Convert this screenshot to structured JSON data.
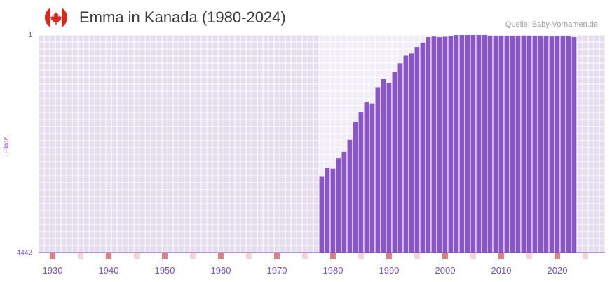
{
  "header": {
    "title": "Emma in Kanada (1980-2024)",
    "source": "Quelle: Baby-Vornamen.de",
    "flag_icon": "canada-flag-icon"
  },
  "colors": {
    "bar": "#8a56c6",
    "plot_bg": "#e4deee",
    "highlight_bg": "#f1eef7",
    "grid": "#ffffff",
    "axis": "#7a4fc0",
    "decade_marker": "#e07c86",
    "half_decade_marker": "#f6d2d9",
    "flag_red": "#d52b1e"
  },
  "chart_data": {
    "type": "bar",
    "title": "Emma in Kanada (1980-2024)",
    "xlabel": "",
    "ylabel": "Platz",
    "x_range": [
      1928,
      2029
    ],
    "y_range_rank": [
      4442,
      1
    ],
    "y_tick_labels": [
      "1",
      "4442"
    ],
    "x_tick_labels": [
      "1930",
      "1940",
      "1950",
      "1960",
      "1970",
      "1980",
      "1990",
      "2000",
      "2010",
      "2020"
    ],
    "x_tick_years": [
      1930,
      1940,
      1950,
      1960,
      1970,
      1980,
      1990,
      2000,
      2010,
      2020
    ],
    "highlight_range": [
      1978,
      2006
    ],
    "bar_value_unit": "share of full scale (1 = rank 1, 0 = rank 4442)",
    "years": [
      1978,
      1979,
      1980,
      1981,
      1982,
      1983,
      1984,
      1985,
      1986,
      1987,
      1988,
      1989,
      1990,
      1991,
      1992,
      1993,
      1994,
      1995,
      1996,
      1997,
      1998,
      1999,
      2000,
      2001,
      2002,
      2003,
      2004,
      2005,
      2006,
      2007,
      2008,
      2009,
      2010,
      2011,
      2012,
      2013,
      2014,
      2015,
      2016,
      2017,
      2018,
      2019,
      2020,
      2021,
      2022,
      2023
    ],
    "values": [
      0.35,
      0.39,
      0.385,
      0.435,
      0.465,
      0.52,
      0.6,
      0.645,
      0.69,
      0.685,
      0.76,
      0.8,
      0.78,
      0.83,
      0.87,
      0.905,
      0.915,
      0.945,
      0.965,
      0.99,
      0.993,
      0.99,
      0.992,
      0.994,
      1.0,
      1.0,
      1.0,
      1.0,
      1.0,
      1.0,
      0.997,
      0.996,
      0.996,
      0.996,
      0.996,
      0.996,
      0.997,
      0.997,
      0.996,
      0.996,
      0.995,
      0.993,
      0.994,
      0.994,
      0.994,
      0.99
    ]
  }
}
